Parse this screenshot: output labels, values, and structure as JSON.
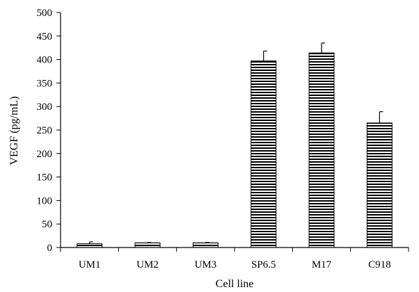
{
  "chart_data": {
    "type": "bar",
    "title": "",
    "xlabel": "Cell line",
    "ylabel": "VEGF (pg/mL)",
    "ylim": [
      0,
      500
    ],
    "yticks": [
      "0",
      "50",
      "100",
      "150",
      "200",
      "250",
      "300",
      "350",
      "400",
      "450",
      "500"
    ],
    "categories": [
      "UM1",
      "UM2",
      "UM3",
      "SP6.5",
      "M17",
      "C918"
    ],
    "values": [
      8,
      10,
      10,
      397,
      414,
      265
    ],
    "errors": [
      4,
      1,
      1,
      21,
      21,
      24
    ],
    "grid": false,
    "legend": "none",
    "bar_pattern": "horizontal-stripes",
    "colors": {
      "bar_fill": "#ffffff",
      "stripe": "#000000",
      "axis": "#000000"
    }
  }
}
